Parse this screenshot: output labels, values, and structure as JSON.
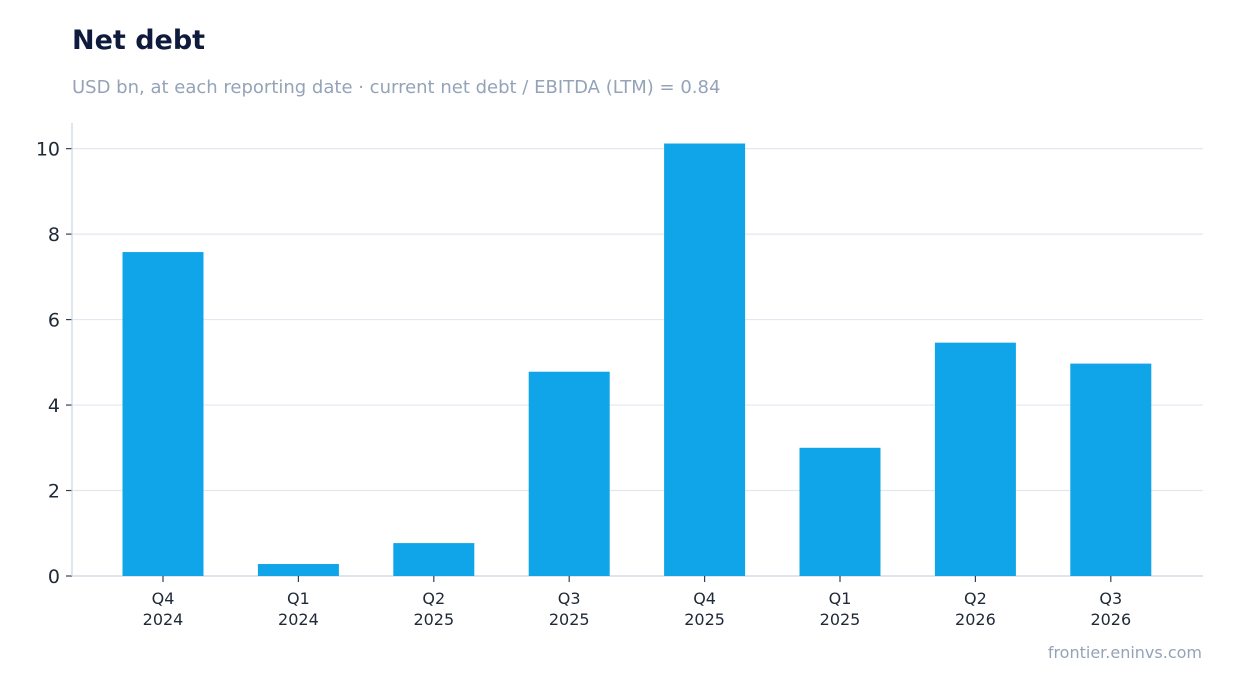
{
  "chart_data": {
    "type": "bar",
    "title": "Net debt",
    "subtitle": "USD bn, at each reporting date · current net debt / EBITDA (LTM) = 0.84",
    "categories": [
      [
        "Q4",
        "2024"
      ],
      [
        "Q1",
        "2024"
      ],
      [
        "Q2",
        "2025"
      ],
      [
        "Q3",
        "2025"
      ],
      [
        "Q4",
        "2025"
      ],
      [
        "Q1",
        "2025"
      ],
      [
        "Q2",
        "2026"
      ],
      [
        "Q3",
        "2026"
      ]
    ],
    "values": [
      7.58,
      0.28,
      0.77,
      4.78,
      10.12,
      3.0,
      5.46,
      4.97
    ],
    "yticks": [
      0,
      2,
      4,
      6,
      8,
      10
    ],
    "ylim": [
      0,
      10.6
    ],
    "xlabel": "",
    "ylabel": "",
    "grid": "horizontal",
    "legend": "none",
    "bar_color": "#10a5e8",
    "grid_color": "#e2e8f0",
    "axis_color": "#cbd5e1"
  },
  "source": "frontier.eninvs.com"
}
